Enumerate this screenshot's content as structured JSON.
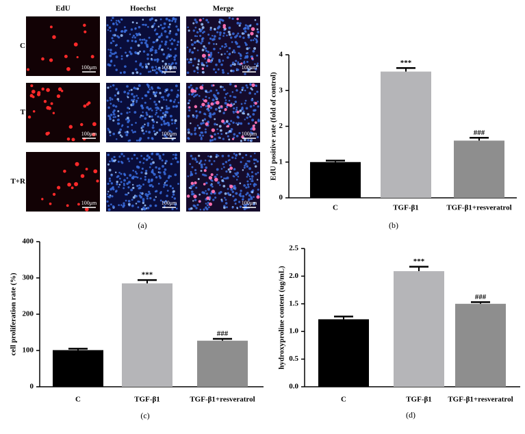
{
  "panel_a": {
    "caption": "(a)",
    "columns": [
      "EdU",
      "Hoechst",
      "Merge"
    ],
    "rows": [
      "C",
      "T",
      "T+R"
    ],
    "scale_bar": "100μm"
  },
  "chart_data": [
    {
      "type": "bar",
      "caption": "(b)",
      "ylabel": "EdU positive rate (fold of control)",
      "categories": [
        "C",
        "TGF-β1",
        "TGF-β1+resveratrol"
      ],
      "values": [
        1.0,
        3.53,
        1.6
      ],
      "errors": [
        0.04,
        0.1,
        0.08
      ],
      "colors": [
        "#000000",
        "#b5b5b8",
        "#8e8e8e"
      ],
      "annotations": [
        null,
        "***",
        "###"
      ],
      "ylim": [
        0,
        4
      ],
      "yticks": [
        0,
        1,
        2,
        3,
        4
      ]
    },
    {
      "type": "bar",
      "caption": "(c)",
      "ylabel": "cell proliferation rate (%)",
      "categories": [
        "C",
        "TGF-β1",
        "TGF-β1+resveratrol"
      ],
      "values": [
        101,
        285,
        127
      ],
      "errors": [
        4,
        9,
        5
      ],
      "colors": [
        "#000000",
        "#b5b5b8",
        "#8e8e8e"
      ],
      "annotations": [
        null,
        "***",
        "###"
      ],
      "ylim": [
        0,
        400
      ],
      "yticks": [
        0,
        100,
        200,
        300,
        400
      ]
    },
    {
      "type": "bar",
      "caption": "(d)",
      "ylabel": "hydroxyproline content (ug/mL)",
      "categories": [
        "C",
        "TGF-β1",
        "TGF-β1+resveratrol"
      ],
      "values": [
        1.22,
        2.09,
        1.5
      ],
      "errors": [
        0.05,
        0.08,
        0.03
      ],
      "colors": [
        "#000000",
        "#b5b5b8",
        "#8e8e8e"
      ],
      "annotations": [
        null,
        "***",
        "###"
      ],
      "ylim": [
        0,
        2.5
      ],
      "yticks": [
        {
          "value": 0,
          "label": "0.0"
        },
        0.5,
        {
          "value": 1,
          "label": "1.0"
        },
        1.5,
        {
          "value": 2,
          "label": "2.0"
        },
        2.5
      ]
    }
  ]
}
